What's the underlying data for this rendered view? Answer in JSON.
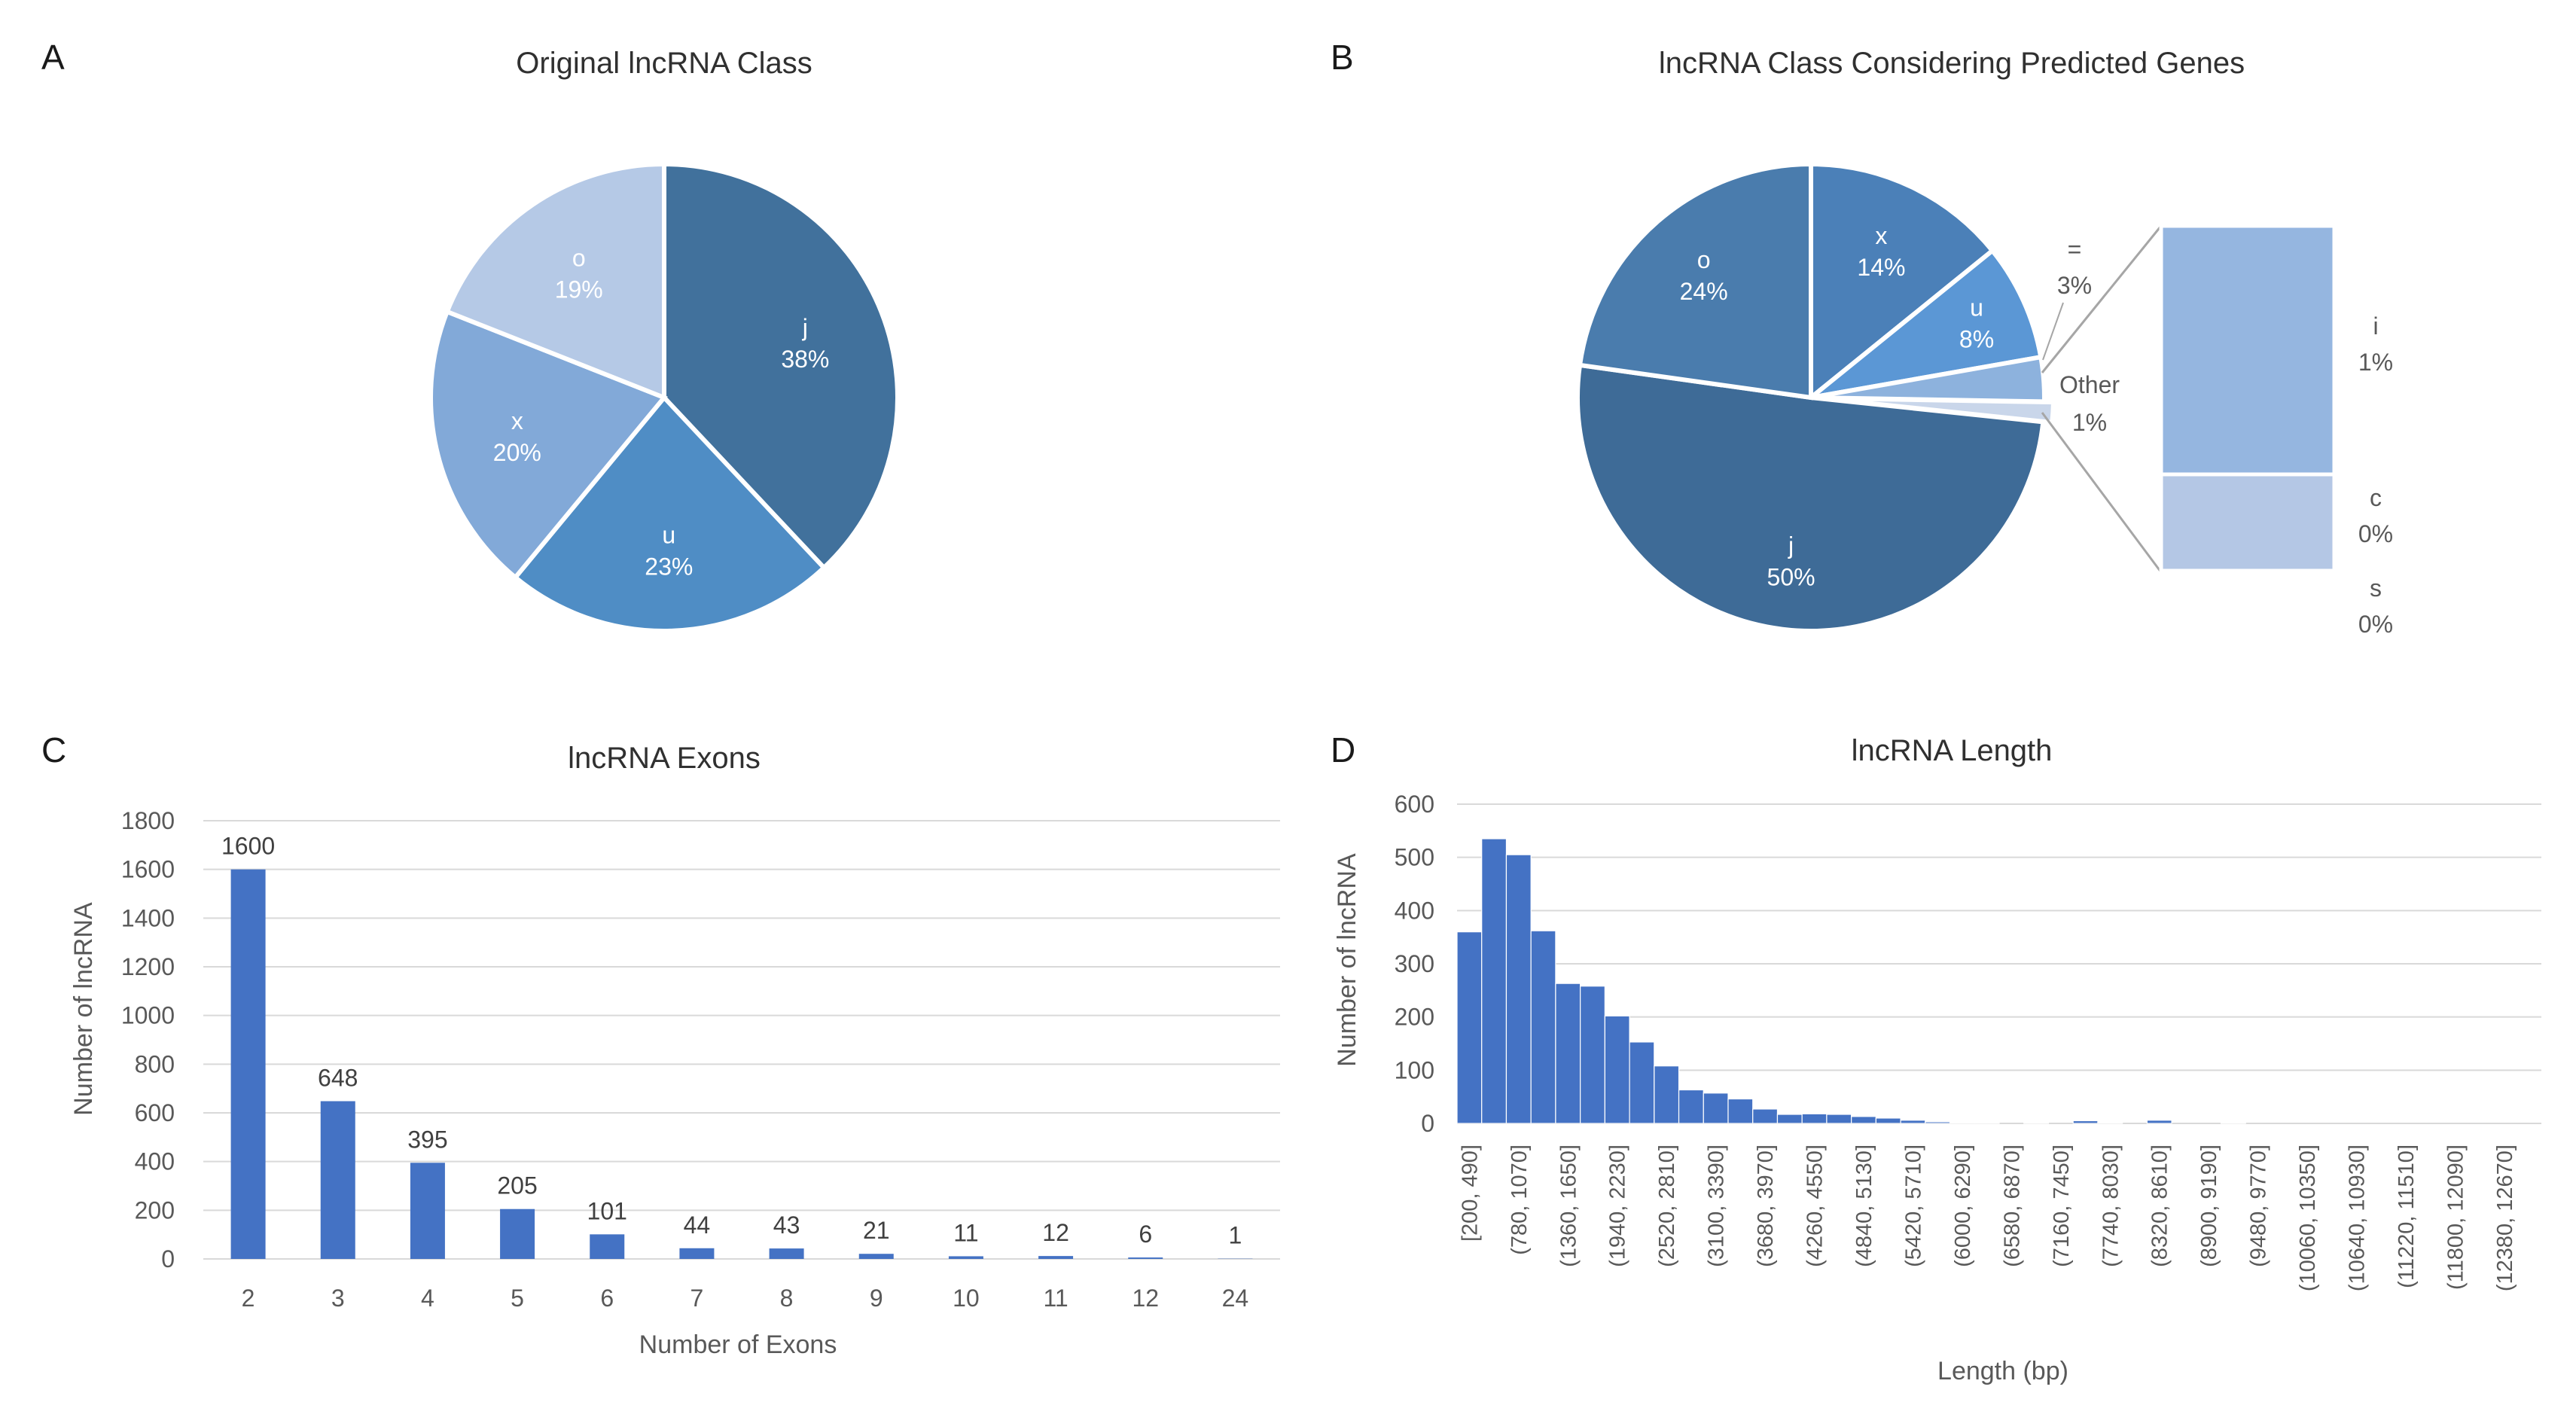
{
  "chart_data": [
    {
      "id": "A",
      "type": "pie",
      "panel_label": "A",
      "title": "Original lncRNA Class",
      "slices": [
        {
          "label": "j",
          "percent": 38,
          "display": "38%",
          "color": "#41719c"
        },
        {
          "label": "u",
          "percent": 23,
          "display": "23%",
          "color": "#4f8dc5"
        },
        {
          "label": "x",
          "percent": 20,
          "display": "20%",
          "color": "#82a9d8"
        },
        {
          "label": "o",
          "percent": 19,
          "display": "19%",
          "color": "#b5c9e6"
        }
      ]
    },
    {
      "id": "B",
      "type": "pie",
      "subtype": "bar-of-pie",
      "panel_label": "B",
      "title": "lncRNA Class Considering Predicted Genes",
      "slices": [
        {
          "label": "x",
          "percent": 14,
          "display": "14%",
          "color": "#4b80b8"
        },
        {
          "label": "u",
          "percent": 8,
          "display": "8%",
          "color": "#5b97d5"
        },
        {
          "label": "=",
          "percent": 3,
          "display": "3%",
          "color": "#8db2dd"
        },
        {
          "label": "Other",
          "percent": 1,
          "display": "1%",
          "color": "#c9d6ea"
        },
        {
          "label": "j",
          "percent": 50,
          "display": "50%",
          "color": "#3e6b97"
        },
        {
          "label": "o",
          "percent": 24,
          "display": "24%",
          "color": "#4a7cad"
        }
      ],
      "breakdown": [
        {
          "label": "i",
          "percent": 1,
          "display": "1%",
          "color": "#95b6e0"
        },
        {
          "label": "c",
          "percent": 0,
          "display": "0%",
          "color": "#b4c7e5"
        },
        {
          "label": "s",
          "percent": 0,
          "display": "0%",
          "color": "#d0dcef"
        }
      ]
    },
    {
      "id": "C",
      "type": "bar",
      "panel_label": "C",
      "title": "lncRNA Exons",
      "xlabel": "Number of Exons",
      "ylabel": "Number of lncRNA",
      "categories": [
        "2",
        "3",
        "4",
        "5",
        "6",
        "7",
        "8",
        "9",
        "10",
        "11",
        "12",
        "24"
      ],
      "values": [
        1600,
        648,
        395,
        205,
        101,
        44,
        43,
        21,
        11,
        12,
        6,
        1
      ],
      "ylim": [
        0,
        1800
      ],
      "yticks": [
        0,
        200,
        400,
        600,
        800,
        1000,
        1200,
        1400,
        1600,
        1800
      ],
      "grid": true,
      "color": "#4472c4"
    },
    {
      "id": "D",
      "type": "bar",
      "subtype": "histogram",
      "panel_label": "D",
      "title": "lncRNA Length",
      "xlabel": "Length (bp)",
      "ylabel": "Number of lncRNA",
      "bin_labels": [
        "[200, 490]",
        "(780, 1070]",
        "(1360, 1650]",
        "(1940, 2230]",
        "(2520, 2810]",
        "(3100, 3390]",
        "(3680, 3970]",
        "(4260, 4550]",
        "(4840, 5130]",
        "(5420, 5710]",
        "(6000, 6290]",
        "(6580, 6870]",
        "(7160, 7450]",
        "(7740, 8030]",
        "(8320, 8610]",
        "(8900, 9190]",
        "(9480, 9770]",
        "(10060, 10350]",
        "(10640, 10930]",
        "(11220, 11510]",
        "(11800, 12090]",
        "(12380, 12670]"
      ],
      "values": [
        360,
        535,
        505,
        362,
        263,
        258,
        202,
        153,
        108,
        63,
        57,
        46,
        27,
        17,
        18,
        17,
        13,
        10,
        6,
        3,
        1,
        1,
        0,
        1,
        0,
        5,
        1,
        0,
        6,
        0,
        0,
        1,
        0,
        0,
        0,
        0,
        0,
        0,
        0,
        0,
        0,
        0,
        0,
        0
      ],
      "ylim": [
        0,
        600
      ],
      "yticks": [
        0,
        100,
        200,
        300,
        400,
        500,
        600
      ],
      "grid": true,
      "color": "#4472c4"
    }
  ]
}
